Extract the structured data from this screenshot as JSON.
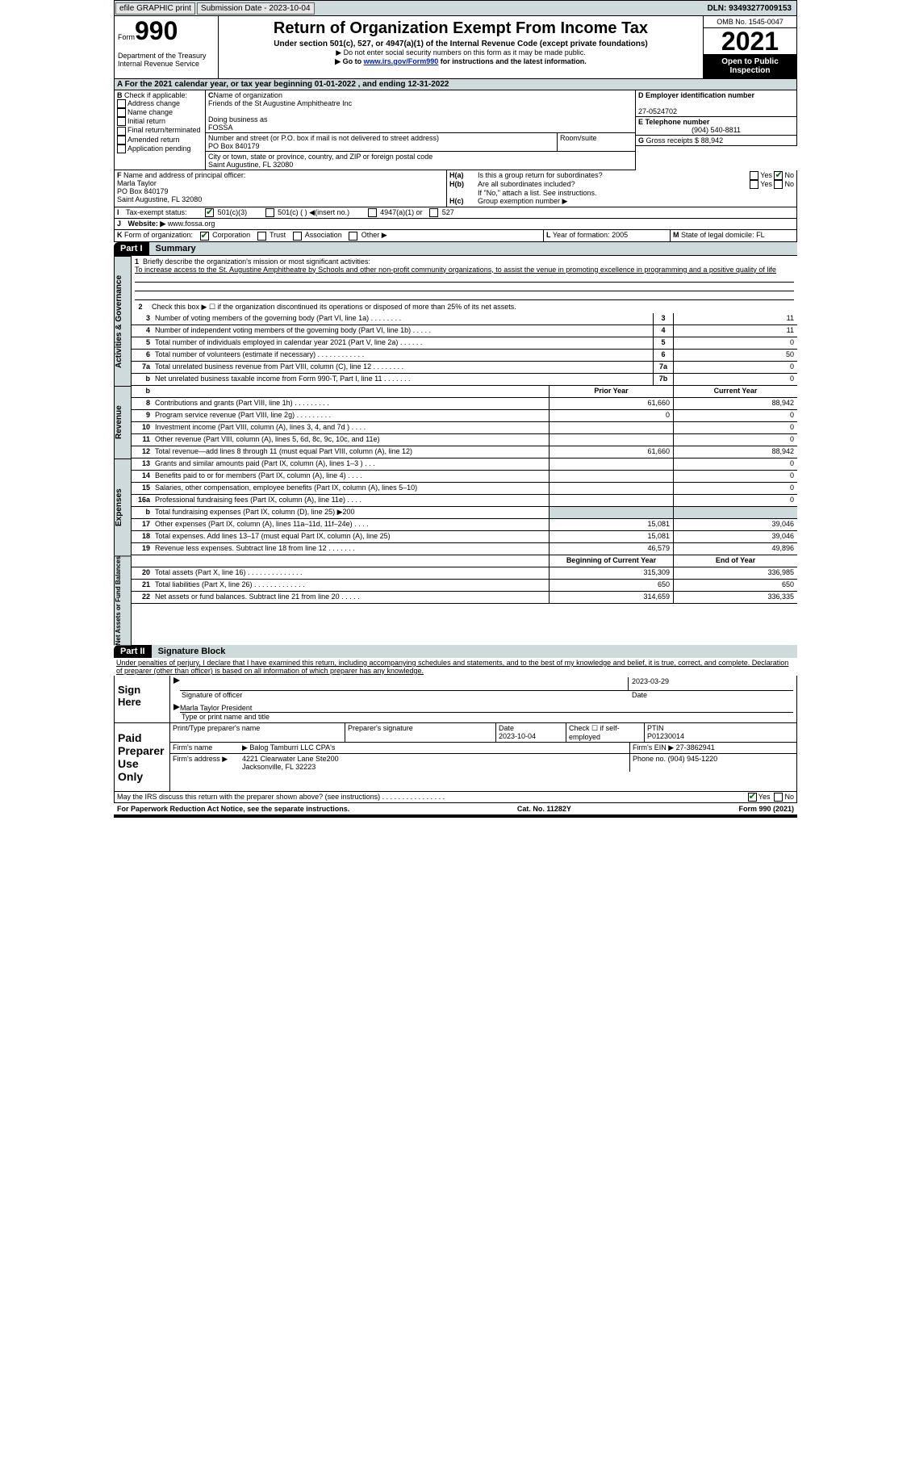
{
  "topbar": {
    "efile": "efile GRAPHIC print",
    "sub": "Submission Date - 2023-10-04",
    "dln": "DLN: 93493277009153"
  },
  "hdr": {
    "form": "Form",
    "num": "990",
    "dept": "Department of the Treasury",
    "irs": "Internal Revenue Service",
    "title": "Return of Organization Exempt From Income Tax",
    "sub1": "Under section 501(c), 527, or 4947(a)(1) of the Internal Revenue Code (except private foundations)",
    "sub2": "▶ Do not enter social security numbers on this form as it may be made public.",
    "sub3": "▶ Go to ",
    "sub3l": "www.irs.gov/Form990",
    "sub3b": " for instructions and the latest information.",
    "omb": "OMB No. 1545-0047",
    "yr": "2021",
    "pub": "Open to Public Inspection"
  },
  "A": {
    "t": "A For the 2021 calendar year, or tax year beginning 01-01-2022    , and ending 12-31-2022"
  },
  "B": {
    "h": "B",
    "lbl": "Check if applicable:",
    "opts": [
      "Address change",
      "Name change",
      "Initial return",
      "Final return/terminated",
      "Amended return",
      "Application pending"
    ]
  },
  "C": {
    "h": "C",
    "namelbl": "Name of organization",
    "name": "Friends of the St Augustine Amphitheatre Inc",
    "dba_l": "Doing business as",
    "dba": "FOSSA",
    "addr_l": "Number and street (or P.O. box if mail is not delivered to street address)",
    "addr": "PO Box 840179",
    "room": "Room/suite",
    "city_l": "City or town, state or province, country, and ZIP or foreign postal code",
    "city": "Saint Augustine, FL  32080"
  },
  "D": {
    "l": "D Employer identification number",
    "v": "27-0524702"
  },
  "E": {
    "l": "E Telephone number",
    "v": "(904) 540-8811"
  },
  "G": {
    "l": "G",
    "t": "Gross receipts $",
    "v": "88,942"
  },
  "F": {
    "l": "F",
    "t": "Name and address of principal officer:",
    "n": "Marla Taylor",
    "a1": "PO Box 840179",
    "a2": "Saint Augustine, FL  32080"
  },
  "H": {
    "a": "H(a)",
    "at": "Is this a group return for subordinates?",
    "b": "H(b)",
    "bt": "Are all subordinates included?",
    "bn": "If \"No,\" attach a list. See instructions.",
    "c": "H(c)",
    "ct": "Group exemption number ▶",
    "yes": "Yes",
    "no": "No"
  },
  "I": {
    "l": "I",
    "t": "Tax-exempt status:",
    "o1": "501(c)(3)",
    "o2": "501(c) (  ) ◀(insert no.)",
    "o3": "4947(a)(1) or",
    "o4": "527"
  },
  "J": {
    "l": "J",
    "t": "Website: ▶",
    "v": "www.fossa.org"
  },
  "K": {
    "l": "K",
    "t": "Form of organization:",
    "o": [
      "Corporation",
      "Trust",
      "Association",
      "Other ▶"
    ]
  },
  "L": {
    "l": "L",
    "t": "Year of formation:",
    "v": "2005"
  },
  "M": {
    "l": "M",
    "t": "State of legal domicile:",
    "v": "FL"
  },
  "P1": {
    "n": "Part I",
    "t": "Summary"
  },
  "sum": {
    "l1": "Briefly describe the organization's mission or most significant activities:",
    "l1v": "To increase access to the St. Augustine Amphitheatre by Schools and other non-profit community organizations, to assist the venue in promoting excellence in programming and a positive quality of life",
    "l2": "Check this box ▶ ☐ if the organization discontinued its operations or disposed of more than 25% of its net assets.",
    "r": [
      {
        "n": "3",
        "t": "Number of voting members of the governing body (Part VI, line 1a)   .    .    .    .    .    .    .    .",
        "b": "3",
        "v": "11"
      },
      {
        "n": "4",
        "t": "Number of independent voting members of the governing body (Part VI, line 1b)   .    .    .    .    .",
        "b": "4",
        "v": "11"
      },
      {
        "n": "5",
        "t": "Total number of individuals employed in calendar year 2021 (Part V, line 2a)   .    .    .    .    .    .",
        "b": "5",
        "v": "0"
      },
      {
        "n": "6",
        "t": "Total number of volunteers (estimate if necessary)    .    .    .    .    .    .    .    .    .    .    .    .",
        "b": "6",
        "v": "50"
      },
      {
        "n": "7a",
        "t": "Total unrelated business revenue from Part VIII, column (C), line 12    .    .    .    .    .    .    .    .",
        "b": "7a",
        "v": "0"
      },
      {
        "n": "b",
        "t": "Net unrelated business taxable income from Form 990-T, Part I, line 11   .    .    .    .    .    .    .",
        "b": "7b",
        "v": "0"
      }
    ],
    "py": "Prior Year",
    "cy": "Current Year",
    "rev": {
      "lbl": "Revenue",
      "rows": [
        {
          "n": "8",
          "t": "Contributions and grants (Part VIII, line 1h)    .    .    .    .    .    .    .    .    .",
          "p": "61,660",
          "c": "88,942"
        },
        {
          "n": "9",
          "t": "Program service revenue (Part VIII, line 2g)    .    .    .    .    .    .    .    .    .",
          "p": "0",
          "c": "0"
        },
        {
          "n": "10",
          "t": "Investment income (Part VIII, column (A), lines 3, 4, and 7d )    .    .    .    .",
          "p": "",
          "c": "0"
        },
        {
          "n": "11",
          "t": "Other revenue (Part VIII, column (A), lines 5, 6d, 8c, 9c, 10c, and 11e)",
          "p": "",
          "c": "0"
        },
        {
          "n": "12",
          "t": "Total revenue—add lines 8 through 11 (must equal Part VIII, column (A), line 12)",
          "p": "61,660",
          "c": "88,942"
        }
      ]
    },
    "exp": {
      "lbl": "Expenses",
      "rows": [
        {
          "n": "13",
          "t": "Grants and similar amounts paid (Part IX, column (A), lines 1–3 )   .    .    .",
          "p": "",
          "c": "0"
        },
        {
          "n": "14",
          "t": "Benefits paid to or for members (Part IX, column (A), line 4)   .    .    .    .",
          "p": "",
          "c": "0"
        },
        {
          "n": "15",
          "t": "Salaries, other compensation, employee benefits (Part IX, column (A), lines 5–10)",
          "p": "",
          "c": "0"
        },
        {
          "n": "16a",
          "t": "Professional fundraising fees (Part IX, column (A), line 11e)    .    .    .    .",
          "p": "",
          "c": "0"
        },
        {
          "n": "b",
          "t": "Total fundraising expenses (Part IX, column (D), line 25) ▶200",
          "p": "sh",
          "c": "sh"
        },
        {
          "n": "17",
          "t": "Other expenses (Part IX, column (A), lines 11a–11d, 11f–24e)    .    .    .    .",
          "p": "15,081",
          "c": "39,046"
        },
        {
          "n": "18",
          "t": "Total expenses. Add lines 13–17 (must equal Part IX, column (A), line 25)",
          "p": "15,081",
          "c": "39,046"
        },
        {
          "n": "19",
          "t": "Revenue less expenses. Subtract line 18 from line 12  .    .    .    .    .    .    .",
          "p": "46,579",
          "c": "49,896"
        }
      ]
    },
    "na": {
      "lbl": "Net Assets or Fund Balances",
      "by": "Beginning of Current Year",
      "ey": "End of Year",
      "rows": [
        {
          "n": "20",
          "t": "Total assets (Part X, line 16)  .    .    .    .    .    .    .    .    .    .    .    .    .    .",
          "p": "315,309",
          "c": "336,985"
        },
        {
          "n": "21",
          "t": "Total liabilities (Part X, line 26)  .    .    .    .    .    .    .    .    .    .    .    .    .",
          "p": "650",
          "c": "650"
        },
        {
          "n": "22",
          "t": "Net assets or fund balances. Subtract line 21 from line 20   .    .    .    .    .",
          "p": "314,659",
          "c": "336,335"
        }
      ]
    }
  },
  "P2": {
    "n": "Part II",
    "t": "Signature Block"
  },
  "sig": {
    "decl": "Under penalties of perjury, I declare that I have examined this return, including accompanying schedules and statements, and to the best of my knowledge and belief, it is true, correct, and complete. Declaration of preparer (other than officer) is based on all information of which preparer has any knowledge.",
    "here": "Sign Here",
    "so": "Signature of officer",
    "dt": "2023-03-29",
    "tn": "Marla Taylor  President",
    "tnl": "Type or print name and title",
    "prep": "Paid Preparer Use Only",
    "pn": "Print/Type preparer's name",
    "ps": "Preparer's signature",
    "pd": "Date",
    "pdv": "2023-10-04",
    "chk": "Check ☐ if self-employed",
    "ptin": "PTIN",
    "ptinv": "P01230014",
    "fn": "Firm's name",
    "fnv": "Balog Tamburri LLC CPA's",
    "fe": "Firm's EIN ▶",
    "fev": "27-3862941",
    "fa": "Firm's address ▶",
    "fav1": "4221 Clearwater Lane Ste200",
    "fav2": "Jacksonville, FL  32223",
    "ph": "Phone no.",
    "phv": "(904) 945-1220",
    "may": "May the IRS discuss this return with the preparer shown above? (see instructions)   .    .    .    .    .    .    .    .    .    .    .    .    .    .    .    ."
  },
  "foot": {
    "l": "For Paperwork Reduction Act Notice, see the separate instructions.",
    "c": "Cat. No. 11282Y",
    "r": "Form 990 (2021)"
  }
}
